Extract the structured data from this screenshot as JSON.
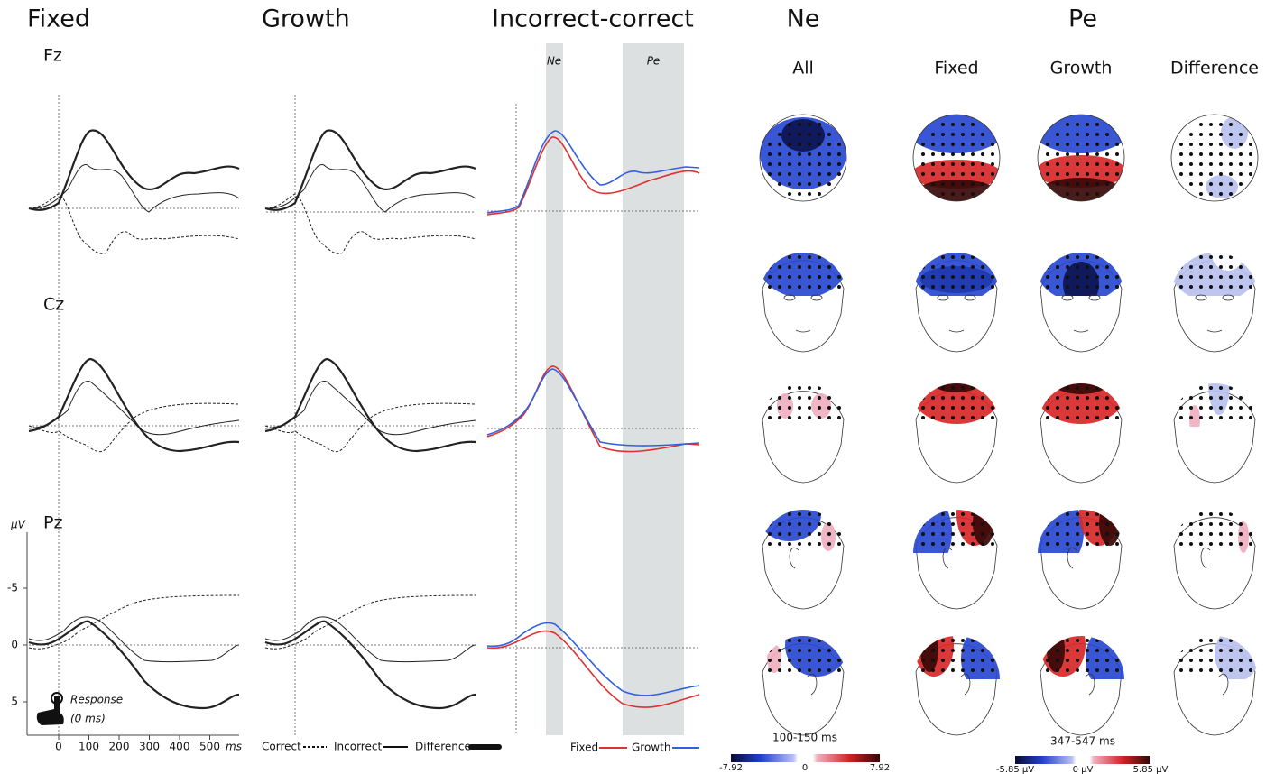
{
  "columns": {
    "fixed": "Fixed",
    "growth": "Growth",
    "diff": "Incorrect-correct",
    "ne": "Ne",
    "pe": "Pe"
  },
  "subheads": [
    "All",
    "Fixed",
    "Growth",
    "Difference"
  ],
  "electrodes": [
    "Fz",
    "Cz",
    "Pz"
  ],
  "axis": {
    "unit": "µV",
    "x_unit": "ms",
    "xticks": [
      0,
      100,
      200,
      300,
      400,
      500
    ],
    "yticks": [
      -5,
      0,
      5
    ]
  },
  "windows": [
    "Ne",
    "Pe"
  ],
  "response": [
    "Response",
    "(0 ms)"
  ],
  "legend1": [
    "Correct",
    "Incorrect",
    "Difference"
  ],
  "legend2": [
    "Fixed",
    "Growth"
  ],
  "ne_time": "100-150 ms",
  "ne_scale": {
    "min": "-7.92",
    "mid": "0",
    "max": "7.92"
  },
  "pe_time": "347-547 ms",
  "pe_scale": {
    "min": "-5.85 µV",
    "mid": "0 µV",
    "max": "5.85 µV"
  }
}
